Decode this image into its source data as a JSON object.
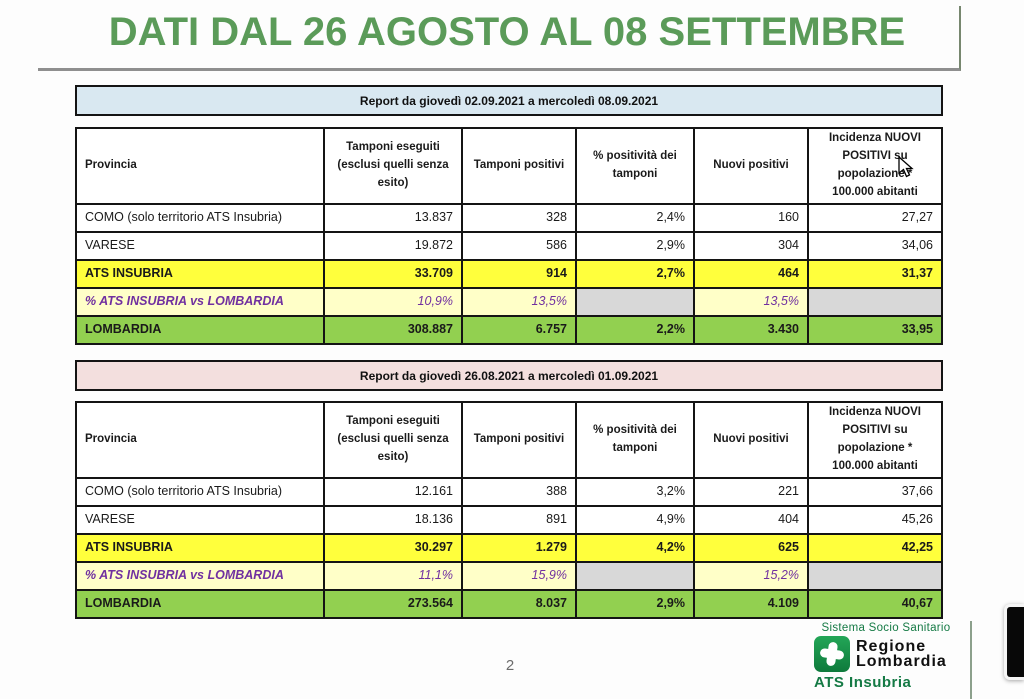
{
  "title": "DATI DAL 26 AGOSTO AL 08 SETTEMBRE",
  "page_number": "2",
  "colors": {
    "title_green": "#5B9B59",
    "banner_week_current": "#D9E8F1",
    "banner_week_previous": "#F3DFDE",
    "highlight_yellow": "#FFFF3C",
    "ratio_pale_yellow": "#FFFFC8",
    "ratio_purple": "#7030A0",
    "total_green": "#92D050",
    "empty_cell_gray": "#D8D8D8",
    "brand_green": "#157A45"
  },
  "tables": [
    {
      "banner": "Report da giovedì 02.09.2021 a mercoledì 08.09.2021",
      "banner_bg": "#D9E8F1",
      "columns": [
        "Provincia",
        "Tamponi eseguiti (esclusi quelli senza esito)",
        "Tamponi positivi",
        "% positività dei tamponi",
        "Nuovi positivi",
        "Incidenza NUOVI POSITIVI su popolazione * 100.000 abitanti"
      ],
      "rows": [
        {
          "label": "COMO (solo territorio ATS Insubria)",
          "values": [
            "13.837",
            "328",
            "2,4%",
            "160",
            "27,27"
          ],
          "style": "plain"
        },
        {
          "label": "VARESE",
          "values": [
            "19.872",
            "586",
            "2,9%",
            "304",
            "34,06"
          ],
          "style": "plain"
        },
        {
          "label": "ATS INSUBRIA",
          "values": [
            "33.709",
            "914",
            "2,7%",
            "464",
            "31,37"
          ],
          "style": "highlight"
        },
        {
          "label": "% ATS INSUBRIA vs LOMBARDIA",
          "values": [
            "10,9%",
            "13,5%",
            "",
            "13,5%",
            ""
          ],
          "style": "ratio"
        },
        {
          "label": "LOMBARDIA",
          "values": [
            "308.887",
            "6.757",
            "2,2%",
            "3.430",
            "33,95"
          ],
          "style": "total"
        }
      ]
    },
    {
      "banner": "Report da giovedì 26.08.2021 a mercoledì 01.09.2021",
      "banner_bg": "#F3DFDE",
      "columns": [
        "Provincia",
        "Tamponi eseguiti (esclusi quelli senza esito)",
        "Tamponi positivi",
        "% positività dei tamponi",
        "Nuovi positivi",
        "Incidenza NUOVI POSITIVI su popolazione * 100.000 abitanti"
      ],
      "rows": [
        {
          "label": "COMO (solo territorio ATS Insubria)",
          "values": [
            "12.161",
            "388",
            "3,2%",
            "221",
            "37,66"
          ],
          "style": "plain"
        },
        {
          "label": "VARESE",
          "values": [
            "18.136",
            "891",
            "4,9%",
            "404",
            "45,26"
          ],
          "style": "plain"
        },
        {
          "label": "ATS INSUBRIA",
          "values": [
            "30.297",
            "1.279",
            "4,2%",
            "625",
            "42,25"
          ],
          "style": "highlight"
        },
        {
          "label": "% ATS INSUBRIA vs LOMBARDIA",
          "values": [
            "11,1%",
            "15,9%",
            "",
            "15,2%",
            ""
          ],
          "style": "ratio"
        },
        {
          "label": "LOMBARDIA",
          "values": [
            "273.564",
            "8.037",
            "2,9%",
            "4.109",
            "40,67"
          ],
          "style": "total"
        }
      ]
    }
  ],
  "footer": {
    "system_label": "Sistema Socio Sanitario",
    "logo_line1": "Regione",
    "logo_line2": "Lombardia",
    "org_label": "ATS Insubria"
  }
}
